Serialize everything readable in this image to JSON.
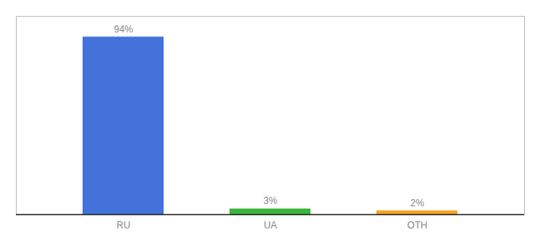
{
  "chart_data": {
    "type": "bar",
    "categories": [
      "RU",
      "UA",
      "OTH"
    ],
    "values": [
      94,
      3,
      2
    ],
    "value_labels": [
      "94%",
      "3%",
      "2%"
    ],
    "colors": [
      "#4472db",
      "#3bb53b",
      "#f5a623"
    ],
    "data_labels": true,
    "ylim": [
      0,
      105
    ],
    "tick_labels": "x"
  }
}
